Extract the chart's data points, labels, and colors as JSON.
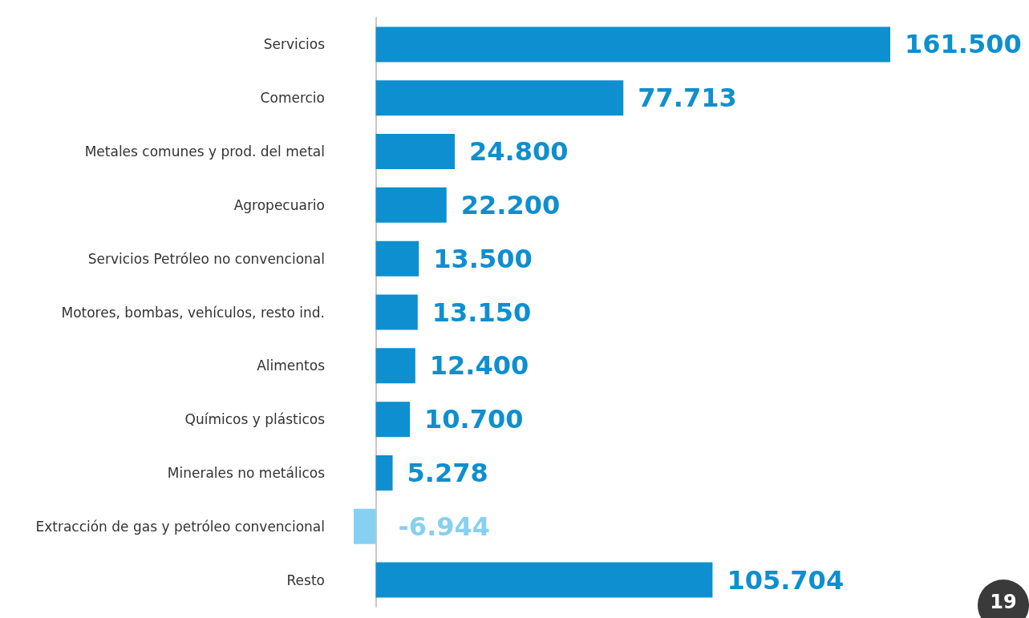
{
  "chart_data": {
    "type": "bar",
    "orientation": "horizontal",
    "categories": [
      "Servicios",
      "Comercio",
      "Metales comunes y prod. del metal",
      "Agropecuario",
      "Servicios Petróleo no convencional",
      "Motores, bombas, vehículos, resto ind.",
      "Alimentos",
      "Químicos y plásticos",
      "Minerales no metálicos",
      "Extracción de gas y petróleo convencional",
      "Resto"
    ],
    "values": [
      161500,
      77713,
      24800,
      22200,
      13500,
      13150,
      12400,
      10700,
      5278,
      -6944,
      105704
    ],
    "value_labels": [
      "161.500",
      "77.713",
      "24.800",
      "22.200",
      "13.500",
      "13.150",
      "12.400",
      "10.700",
      "5.278",
      "-6.944",
      "105.704"
    ],
    "colors": [
      "#0e8fcf",
      "#0e8fcf",
      "#0e8fcf",
      "#0e8fcf",
      "#0e8fcf",
      "#0e8fcf",
      "#0e8fcf",
      "#0e8fcf",
      "#0e8fcf",
      "#87d0f2",
      "#0e8fcf"
    ],
    "tick_labels": "y",
    "annotations": [
      "19"
    ]
  }
}
